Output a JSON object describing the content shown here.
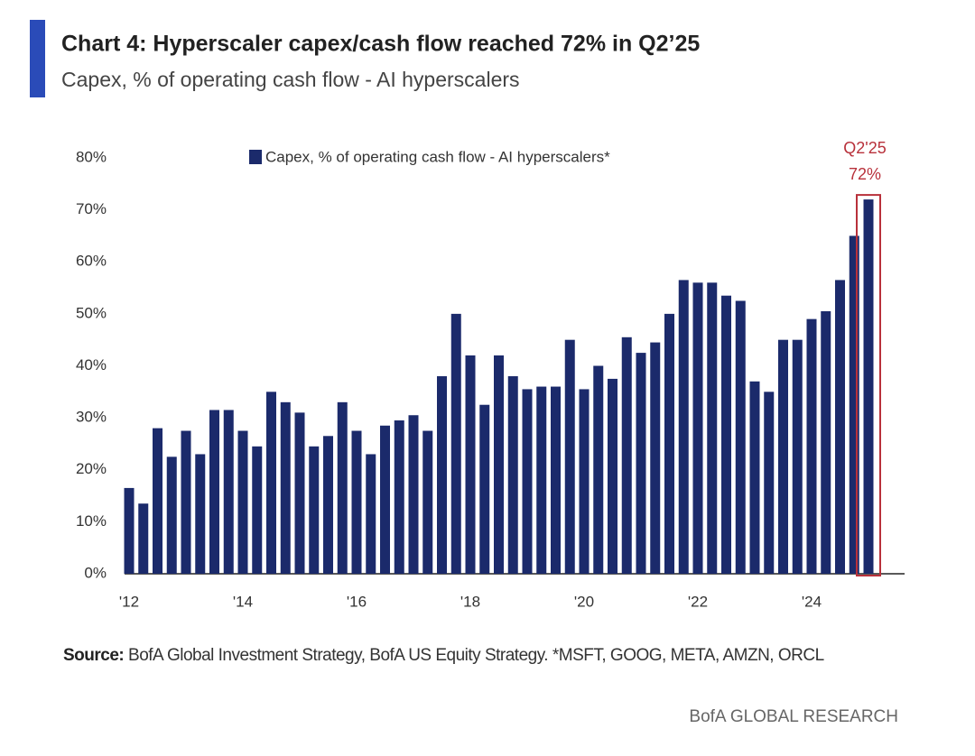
{
  "chart_data": {
    "type": "bar",
    "title": "Chart 4: Hyperscaler capex/cash flow reached 72% in Q2’25",
    "subtitle": "Capex, % of operating cash flow - AI hyperscalers",
    "categories": [
      "'12",
      null,
      null,
      null,
      null,
      null,
      null,
      null,
      "'14",
      null,
      null,
      null,
      null,
      null,
      null,
      null,
      "'16",
      null,
      null,
      null,
      null,
      null,
      null,
      null,
      "'18",
      null,
      null,
      null,
      null,
      null,
      null,
      null,
      "'20",
      null,
      null,
      null,
      null,
      null,
      null,
      null,
      "'22",
      null,
      null,
      null,
      null,
      null,
      null,
      null,
      "'24",
      null,
      null,
      null,
      null
    ],
    "series": [
      {
        "name": "Capex, % of operating cash flow - AI hyperscalers*",
        "color": "#1b2a6b",
        "values": [
          16.5,
          13.5,
          28,
          22.5,
          27.5,
          23,
          31.5,
          31.5,
          27.5,
          24.5,
          35,
          33,
          31,
          24.5,
          26.5,
          33,
          27.5,
          23,
          28.5,
          29.5,
          30.5,
          27.5,
          38,
          50,
          42,
          32.5,
          42,
          38,
          35.5,
          36,
          36,
          45,
          35.5,
          40,
          37.5,
          45.5,
          42.5,
          44.5,
          50,
          56.5,
          56,
          56,
          53.5,
          52.5,
          37,
          35,
          45,
          45,
          49,
          50.5,
          56.5,
          65,
          72
        ]
      }
    ],
    "ylim": [
      0,
      80
    ],
    "yticks": [
      {
        "value": 0,
        "label": "0%"
      },
      {
        "value": 10,
        "label": "10%"
      },
      {
        "value": 20,
        "label": "20%"
      },
      {
        "value": 30,
        "label": "30%"
      },
      {
        "value": 40,
        "label": "40%"
      },
      {
        "value": 50,
        "label": "50%"
      },
      {
        "value": 60,
        "label": "60%"
      },
      {
        "value": 70,
        "label": "70%"
      },
      {
        "value": 80,
        "label": "80%"
      }
    ],
    "annotation": {
      "label": "Q2'25",
      "value_label": "72%",
      "color": "#b8313b"
    },
    "source": {
      "label": "Source:",
      "text": "BofA Global Investment Strategy, BofA US Equity Strategy. *MSFT, GOOG, META, AMZN, ORCL"
    },
    "brand": "BofA GLOBAL RESEARCH"
  }
}
